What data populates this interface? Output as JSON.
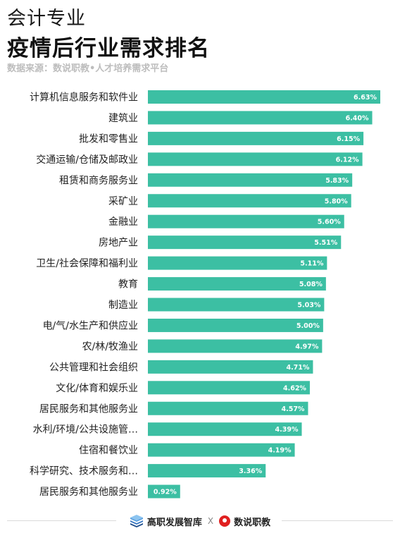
{
  "header": {
    "subtitle": "会计专业",
    "title": "疫情后行业需求排名",
    "source": "数据来源：数说职教•人才培养需求平台"
  },
  "chart_data": {
    "type": "bar",
    "orientation": "horizontal",
    "bar_color": "#3cbfa3",
    "xlim": [
      0,
      7
    ],
    "grid": false,
    "categories": [
      "计算机信息服务和软件业",
      "建筑业",
      "批发和零售业",
      "交通运输/仓储及邮政业",
      "租赁和商务服务业",
      "采矿业",
      "金融业",
      "房地产业",
      "卫生/社会保障和福利业",
      "教育",
      "制造业",
      "电/气/水生产和供应业",
      "农/林/牧渔业",
      "公共管理和社会组织",
      "文化/体育和娱乐业",
      "居民服务和其他服务业",
      "水利/环境/公共设施管…",
      "住宿和餐饮业",
      "科学研究、技术服务和…",
      "居民服务和其他服务业"
    ],
    "values": [
      6.63,
      6.4,
      6.15,
      6.12,
      5.83,
      5.8,
      5.6,
      5.51,
      5.11,
      5.08,
      5.03,
      5.0,
      4.97,
      4.71,
      4.62,
      4.57,
      4.39,
      4.19,
      3.36,
      0.92
    ],
    "value_labels": [
      "6.63%",
      "6.40%",
      "6.15%",
      "6.12%",
      "5.83%",
      "5.80%",
      "5.60%",
      "5.51%",
      "5.11%",
      "5.08%",
      "5.03%",
      "5.00%",
      "4.97%",
      "4.71%",
      "4.62%",
      "4.57%",
      "4.39%",
      "4.19%",
      "3.36%",
      "0.92%"
    ]
  },
  "footer": {
    "brand_left": "高职发展智库",
    "separator": "X",
    "brand_right": "数说职教",
    "left_icon": "books-icon",
    "right_icon": "shushuo-logo-icon"
  }
}
